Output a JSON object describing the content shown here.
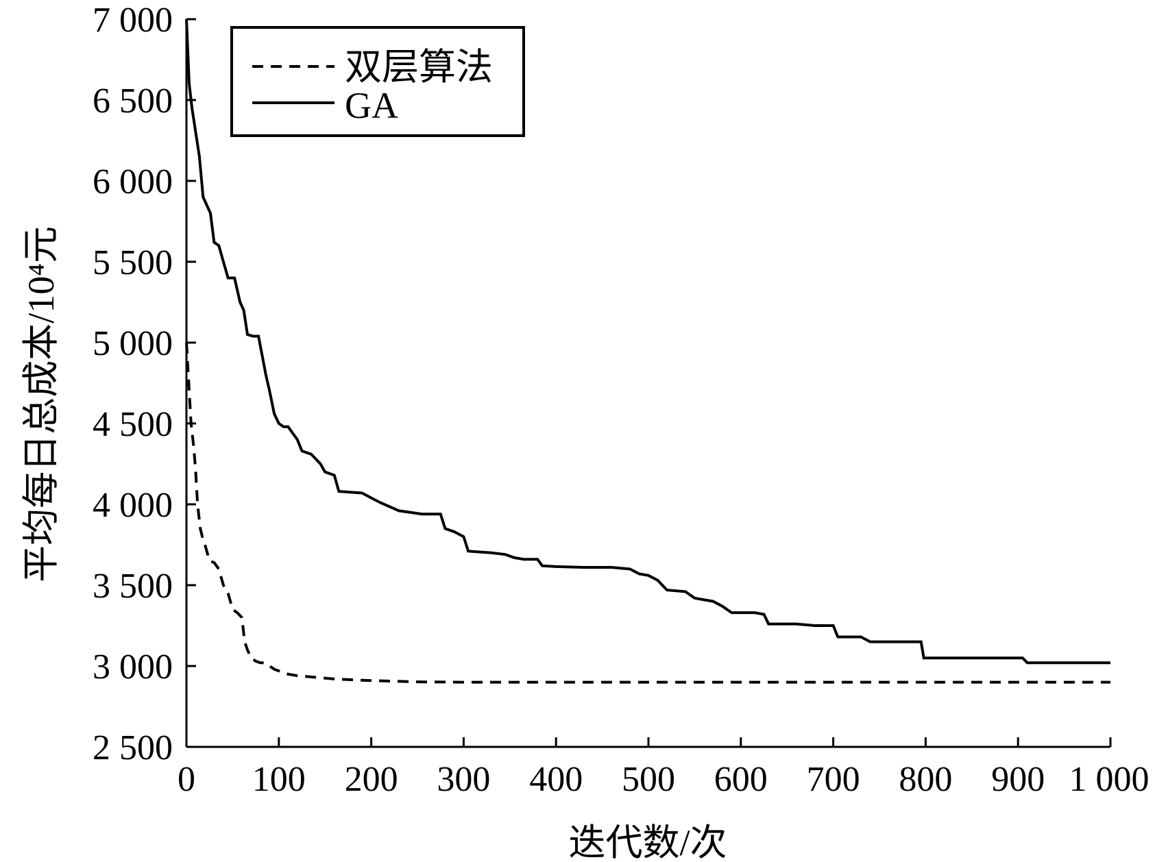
{
  "chart_data": {
    "type": "line",
    "title": "",
    "xlabel": "迭代数/次",
    "ylabel": "平均每日总成本/10⁴元",
    "xlim": [
      0,
      1000
    ],
    "ylim": [
      2500,
      7000
    ],
    "x_ticks": [
      0,
      100,
      200,
      300,
      400,
      500,
      600,
      700,
      800,
      900,
      1000
    ],
    "x_tick_labels": [
      "0",
      "100",
      "200",
      "300",
      "400",
      "500",
      "600",
      "700",
      "800",
      "900",
      "1 000"
    ],
    "y_ticks": [
      2500,
      3000,
      3500,
      4000,
      4500,
      5000,
      5500,
      6000,
      6500,
      7000
    ],
    "y_tick_labels": [
      "2 500",
      "3 000",
      "3 500",
      "4 000",
      "4 500",
      "5 000",
      "5 500",
      "6 000",
      "6 500",
      "7 000"
    ],
    "grid": false,
    "legend_position": "top-left",
    "series": [
      {
        "name": "双层算法",
        "style": "dashed",
        "color": "#000000",
        "points": [
          [
            0,
            5000
          ],
          [
            2,
            4800
          ],
          [
            5,
            4500
          ],
          [
            8,
            4350
          ],
          [
            10,
            4200
          ],
          [
            12,
            4000
          ],
          [
            15,
            3850
          ],
          [
            18,
            3780
          ],
          [
            20,
            3750
          ],
          [
            25,
            3650
          ],
          [
            30,
            3640
          ],
          [
            35,
            3600
          ],
          [
            40,
            3500
          ],
          [
            45,
            3450
          ],
          [
            50,
            3350
          ],
          [
            55,
            3330
          ],
          [
            60,
            3300
          ],
          [
            63,
            3150
          ],
          [
            66,
            3100
          ],
          [
            70,
            3050
          ],
          [
            75,
            3030
          ],
          [
            80,
            3020
          ],
          [
            85,
            3020
          ],
          [
            90,
            3000
          ],
          [
            95,
            2980
          ],
          [
            100,
            2970
          ],
          [
            110,
            2950
          ],
          [
            120,
            2940
          ],
          [
            140,
            2930
          ],
          [
            160,
            2920
          ],
          [
            180,
            2915
          ],
          [
            200,
            2910
          ],
          [
            250,
            2902
          ],
          [
            300,
            2900
          ],
          [
            400,
            2900
          ],
          [
            500,
            2900
          ],
          [
            600,
            2900
          ],
          [
            700,
            2900
          ],
          [
            800,
            2900
          ],
          [
            900,
            2900
          ],
          [
            1000,
            2900
          ]
        ]
      },
      {
        "name": "GA",
        "style": "solid",
        "color": "#000000",
        "points": [
          [
            0,
            7000
          ],
          [
            3,
            6600
          ],
          [
            6,
            6450
          ],
          [
            10,
            6300
          ],
          [
            14,
            6150
          ],
          [
            18,
            5900
          ],
          [
            22,
            5850
          ],
          [
            26,
            5800
          ],
          [
            30,
            5620
          ],
          [
            35,
            5600
          ],
          [
            40,
            5500
          ],
          [
            45,
            5400
          ],
          [
            52,
            5400
          ],
          [
            58,
            5250
          ],
          [
            62,
            5200
          ],
          [
            66,
            5050
          ],
          [
            72,
            5040
          ],
          [
            78,
            5040
          ],
          [
            82,
            4920
          ],
          [
            86,
            4800
          ],
          [
            90,
            4700
          ],
          [
            95,
            4560
          ],
          [
            100,
            4500
          ],
          [
            105,
            4480
          ],
          [
            110,
            4480
          ],
          [
            115,
            4440
          ],
          [
            120,
            4400
          ],
          [
            125,
            4330
          ],
          [
            135,
            4310
          ],
          [
            145,
            4250
          ],
          [
            150,
            4200
          ],
          [
            160,
            4180
          ],
          [
            165,
            4080
          ],
          [
            190,
            4070
          ],
          [
            200,
            4040
          ],
          [
            210,
            4010
          ],
          [
            230,
            3960
          ],
          [
            255,
            3940
          ],
          [
            275,
            3940
          ],
          [
            280,
            3850
          ],
          [
            290,
            3830
          ],
          [
            300,
            3800
          ],
          [
            305,
            3710
          ],
          [
            330,
            3700
          ],
          [
            345,
            3690
          ],
          [
            355,
            3670
          ],
          [
            365,
            3660
          ],
          [
            380,
            3660
          ],
          [
            385,
            3620
          ],
          [
            400,
            3615
          ],
          [
            430,
            3610
          ],
          [
            460,
            3610
          ],
          [
            480,
            3600
          ],
          [
            490,
            3570
          ],
          [
            500,
            3560
          ],
          [
            510,
            3530
          ],
          [
            520,
            3470
          ],
          [
            540,
            3460
          ],
          [
            550,
            3420
          ],
          [
            570,
            3400
          ],
          [
            580,
            3370
          ],
          [
            590,
            3330
          ],
          [
            615,
            3330
          ],
          [
            625,
            3320
          ],
          [
            630,
            3260
          ],
          [
            660,
            3260
          ],
          [
            680,
            3250
          ],
          [
            700,
            3250
          ],
          [
            705,
            3180
          ],
          [
            730,
            3180
          ],
          [
            740,
            3150
          ],
          [
            780,
            3150
          ],
          [
            795,
            3150
          ],
          [
            798,
            3050
          ],
          [
            840,
            3050
          ],
          [
            880,
            3050
          ],
          [
            905,
            3050
          ],
          [
            910,
            3020
          ],
          [
            950,
            3020
          ],
          [
            1000,
            3020
          ]
        ]
      }
    ]
  }
}
